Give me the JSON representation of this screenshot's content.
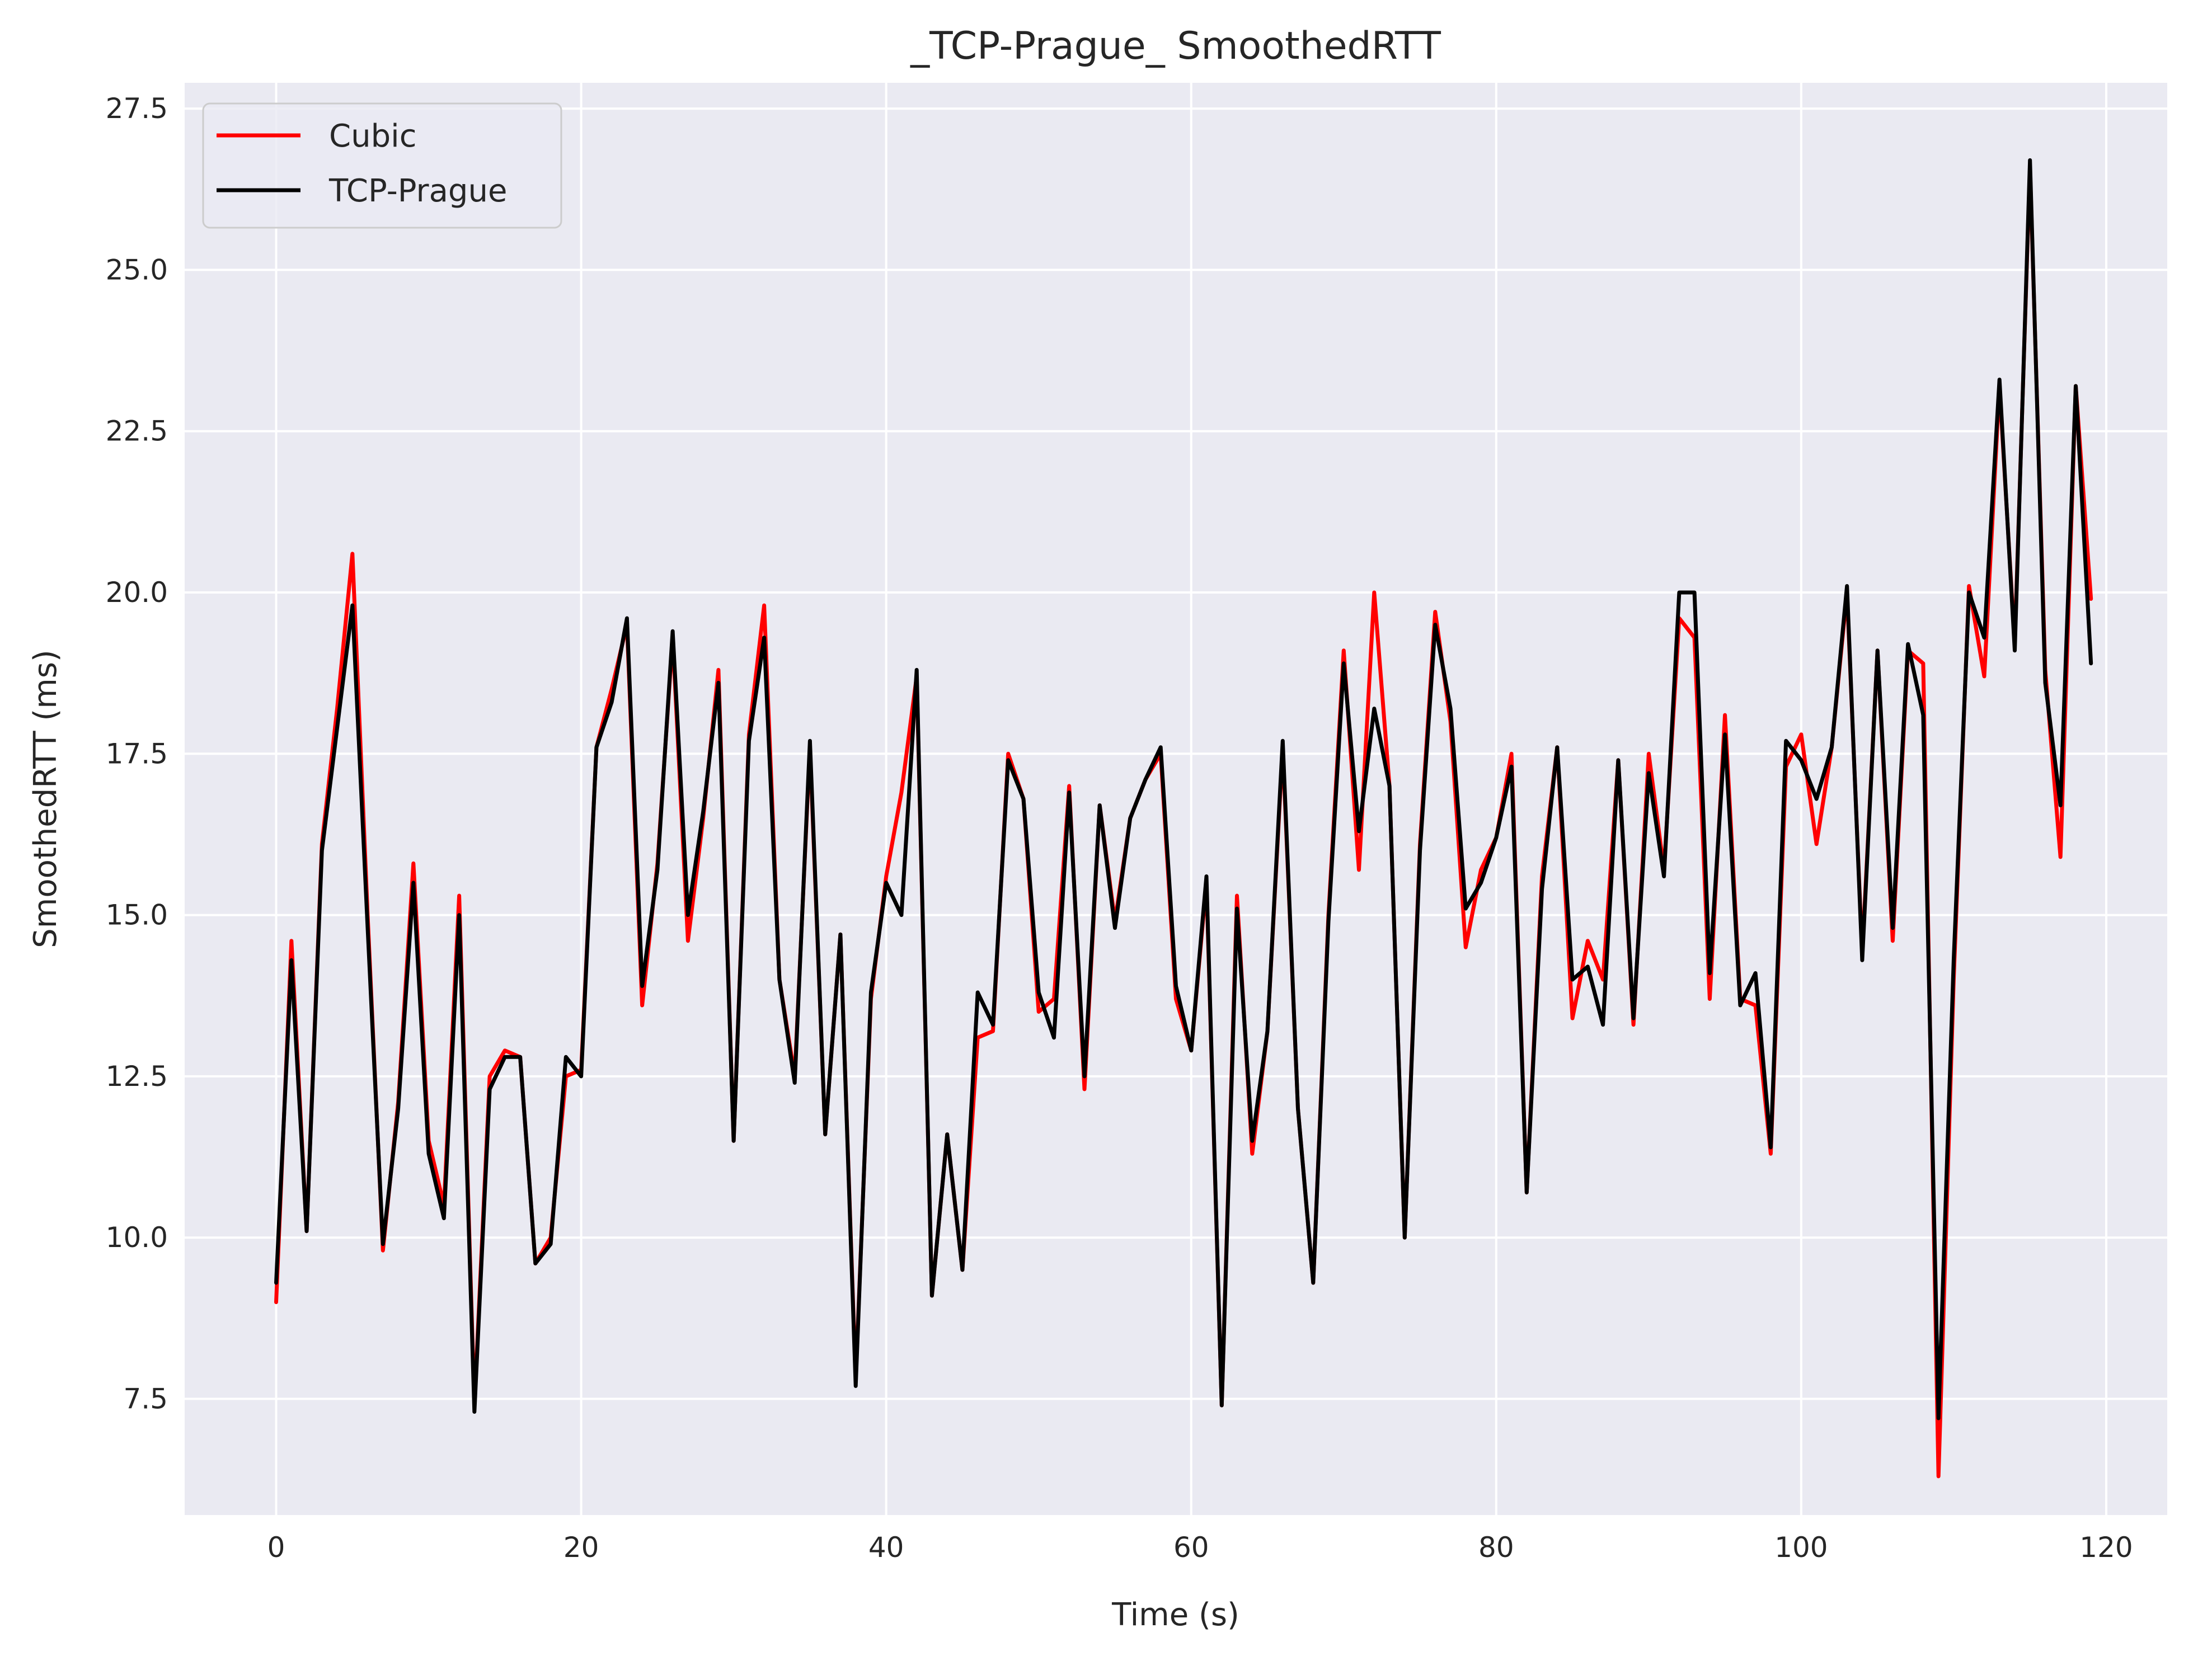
{
  "chart_data": {
    "type": "line",
    "title": "_TCP-Prague_ SmoothedRTT",
    "xlabel": "Time (s)",
    "ylabel": "SmoothedRTT (ms)",
    "xlim": [
      -6,
      124
    ],
    "ylim": [
      5.7,
      27.9
    ],
    "xticks": [
      0,
      20,
      40,
      60,
      80,
      100,
      120
    ],
    "yticks": [
      7.5,
      10.0,
      12.5,
      15.0,
      17.5,
      20.0,
      22.5,
      25.0,
      27.5
    ],
    "xtick_labels": [
      "0",
      "20",
      "40",
      "60",
      "80",
      "100",
      "120"
    ],
    "ytick_labels": [
      "7.5",
      "10.0",
      "12.5",
      "15.0",
      "17.5",
      "20.0",
      "22.5",
      "25.0",
      "27.5"
    ],
    "grid": true,
    "legend_position": "top-left",
    "series": [
      {
        "name": "Cubic",
        "color": "#ff0000",
        "values": [
          9.0,
          14.6,
          10.1,
          16.1,
          18.2,
          20.6,
          15.0,
          9.8,
          12.1,
          15.8,
          11.5,
          10.5,
          15.3,
          7.4,
          12.5,
          12.9,
          12.8,
          9.6,
          10.0,
          12.5,
          12.6,
          17.6,
          18.5,
          19.5,
          13.6,
          15.8,
          19.3,
          14.6,
          16.5,
          18.8,
          11.5,
          17.8,
          19.8,
          14.0,
          12.5,
          17.6,
          11.6,
          14.7,
          7.8,
          13.7,
          15.6,
          16.9,
          18.7,
          9.1,
          11.6,
          9.5,
          13.1,
          13.2,
          17.5,
          16.8,
          13.5,
          13.7,
          17.0,
          12.3,
          16.7,
          14.9,
          16.5,
          17.1,
          17.5,
          13.7,
          12.9,
          15.5,
          7.4,
          15.3,
          11.3,
          13.2,
          17.6,
          12.0,
          9.3,
          15.0,
          19.1,
          15.7,
          20.0,
          17.0,
          10.0,
          16.1,
          19.7,
          18.0,
          14.5,
          15.7,
          16.2,
          17.5,
          10.7,
          15.6,
          17.6,
          13.4,
          14.6,
          14.0,
          17.4,
          13.3,
          17.5,
          15.7,
          19.6,
          19.3,
          13.7,
          18.1,
          13.7,
          13.6,
          11.3,
          17.3,
          17.8,
          16.1,
          17.6,
          20.0,
          14.4,
          19.1,
          14.6,
          19.1,
          18.9,
          6.3,
          14.0,
          20.1,
          18.7,
          23.2,
          19.2,
          26.6,
          18.8,
          15.9,
          23.2,
          19.9
        ]
      },
      {
        "name": "TCP-Prague",
        "color": "#000000",
        "values": [
          9.3,
          14.3,
          10.1,
          16.0,
          17.9,
          19.8,
          14.8,
          9.9,
          12.0,
          15.5,
          11.3,
          10.3,
          15.0,
          7.3,
          12.3,
          12.8,
          12.8,
          9.6,
          9.9,
          12.8,
          12.5,
          17.6,
          18.3,
          19.6,
          13.9,
          15.7,
          19.4,
          15.0,
          16.6,
          18.6,
          11.5,
          17.7,
          19.3,
          14.0,
          12.4,
          17.7,
          11.6,
          14.7,
          7.7,
          13.8,
          15.5,
          15.0,
          18.8,
          9.1,
          11.6,
          9.5,
          13.8,
          13.3,
          17.4,
          16.8,
          13.8,
          13.1,
          16.9,
          12.5,
          16.7,
          14.8,
          16.5,
          17.1,
          17.6,
          13.9,
          12.9,
          15.6,
          7.4,
          15.1,
          11.5,
          13.2,
          17.7,
          12.0,
          9.3,
          14.9,
          18.9,
          16.3,
          18.2,
          17.0,
          10.0,
          16.0,
          19.5,
          18.2,
          15.1,
          15.5,
          16.2,
          17.3,
          10.7,
          15.4,
          17.6,
          14.0,
          14.2,
          13.3,
          17.4,
          13.4,
          17.2,
          15.6,
          20.0,
          20.0,
          14.1,
          17.8,
          13.6,
          14.1,
          11.4,
          17.7,
          17.4,
          16.8,
          17.6,
          20.1,
          14.3,
          19.1,
          14.8,
          19.2,
          18.1,
          7.2,
          14.3,
          20.0,
          19.3,
          23.3,
          19.1,
          26.7,
          18.6,
          16.7,
          23.2,
          18.9
        ]
      }
    ]
  }
}
